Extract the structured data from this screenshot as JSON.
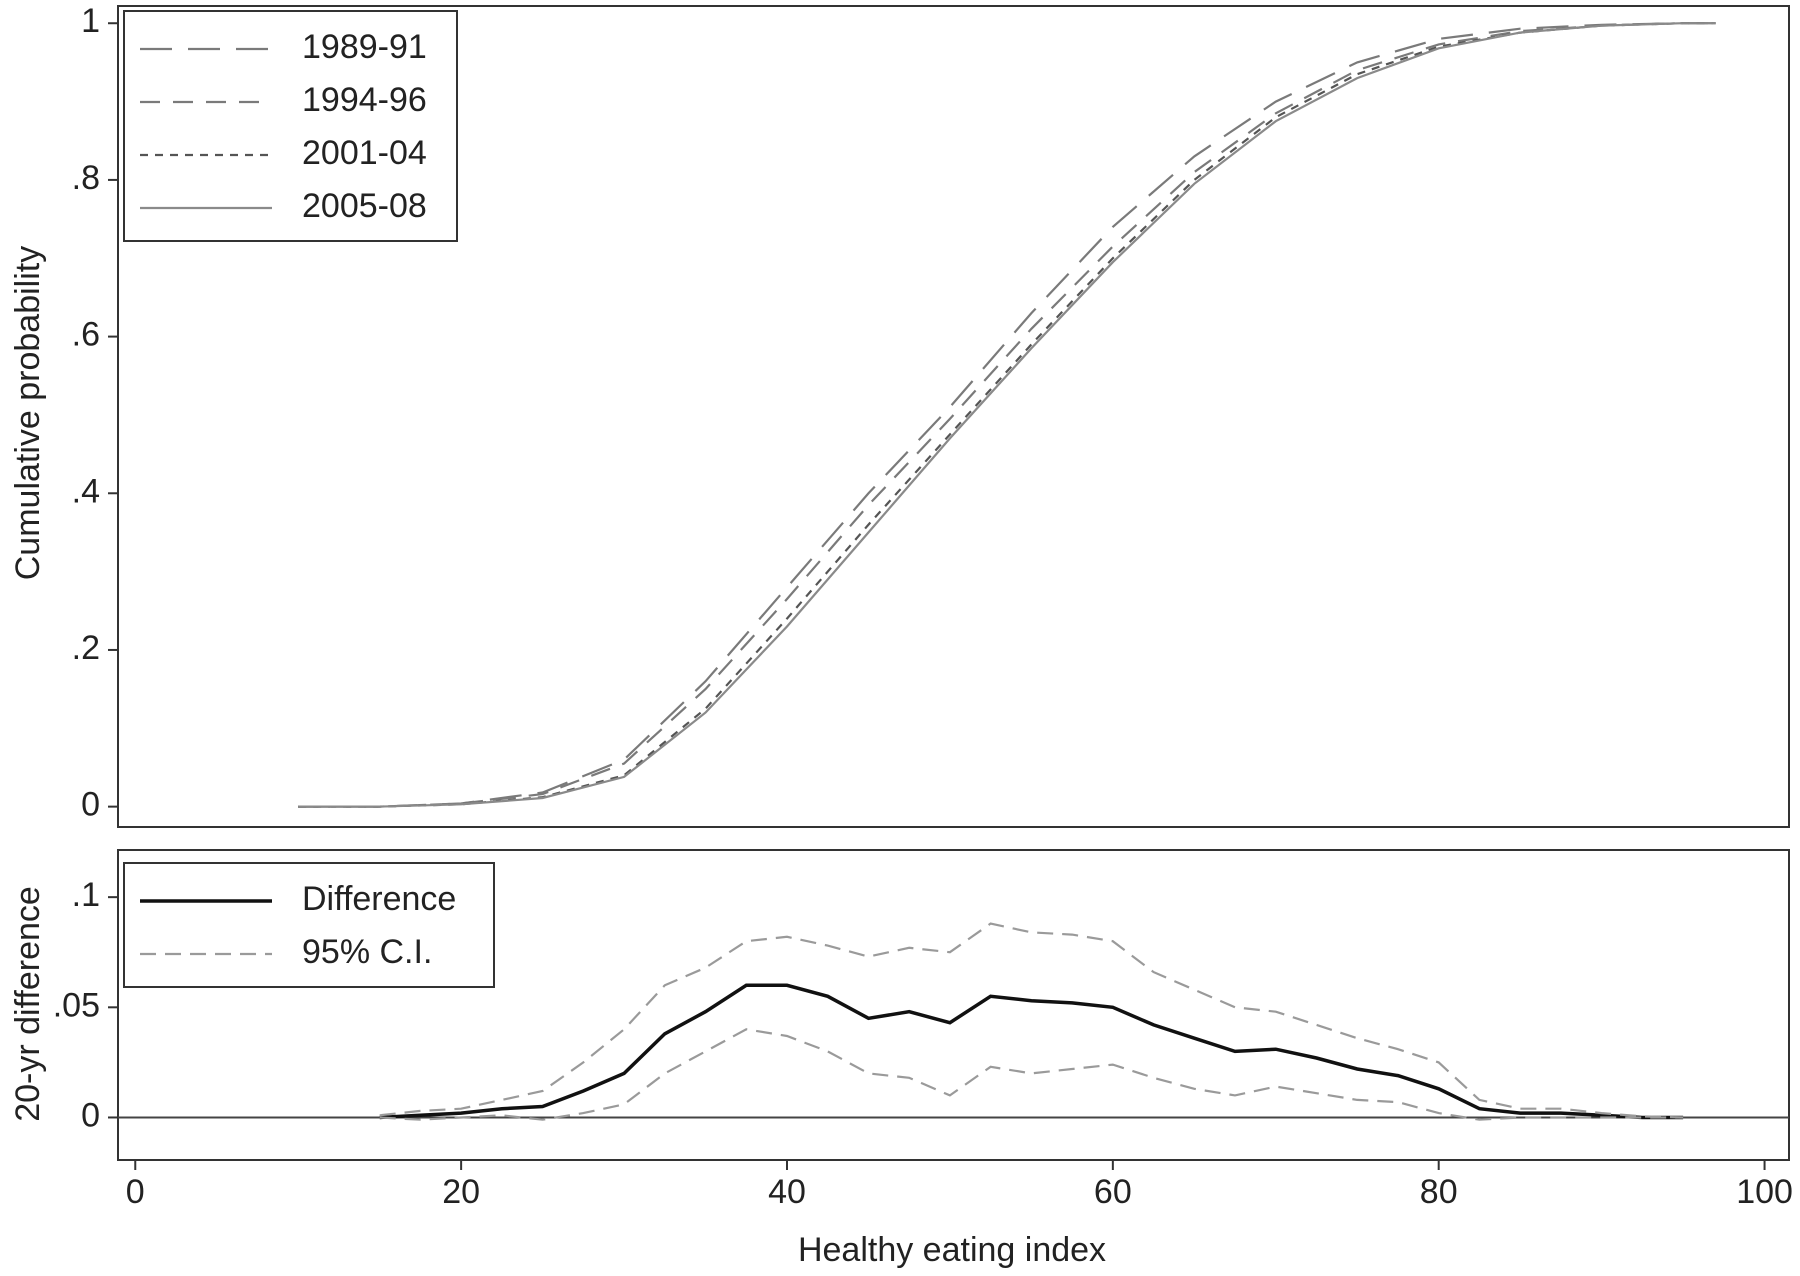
{
  "chart_data": [
    {
      "type": "line",
      "y_label": "Cumulative probability",
      "x": [
        10,
        15,
        20,
        25,
        30,
        35,
        40,
        45,
        50,
        55,
        60,
        65,
        70,
        75,
        80,
        85,
        90,
        95,
        97
      ],
      "series": [
        {
          "name": "1989-91",
          "color": "#7a7a7a",
          "dash": "long",
          "values": [
            0,
            0,
            0.004,
            0.018,
            0.06,
            0.16,
            0.28,
            0.4,
            0.51,
            0.63,
            0.74,
            0.83,
            0.9,
            0.95,
            0.98,
            0.993,
            0.998,
            1,
            1
          ]
        },
        {
          "name": "1994-96",
          "color": "#7a7a7a",
          "dash": "medium",
          "values": [
            0,
            0,
            0.004,
            0.016,
            0.055,
            0.15,
            0.265,
            0.385,
            0.495,
            0.61,
            0.715,
            0.81,
            0.885,
            0.94,
            0.973,
            0.99,
            0.997,
            1,
            1
          ]
        },
        {
          "name": "2001-04",
          "color": "#555555",
          "dash": "short",
          "values": [
            0,
            0,
            0.003,
            0.012,
            0.04,
            0.125,
            0.24,
            0.36,
            0.475,
            0.59,
            0.7,
            0.8,
            0.88,
            0.935,
            0.97,
            0.988,
            0.997,
            1,
            1
          ]
        },
        {
          "name": "2005-08",
          "color": "#8a8a8a",
          "dash": "solid",
          "values": [
            0,
            0,
            0.003,
            0.011,
            0.038,
            0.12,
            0.23,
            0.35,
            0.47,
            0.585,
            0.695,
            0.795,
            0.875,
            0.93,
            0.968,
            0.988,
            0.997,
            1,
            1
          ]
        }
      ],
      "xlim": [
        -1.06,
        101.5
      ],
      "ylim": [
        -0.026,
        1.022
      ],
      "yticks": [
        0,
        {
          "value": 0.2,
          "label": ".2"
        },
        {
          "value": 0.4,
          "label": ".4"
        },
        {
          "value": 0.6,
          "label": ".6"
        },
        {
          "value": 0.8,
          "label": ".8"
        },
        1
      ],
      "legend": "upper left"
    },
    {
      "type": "line",
      "y_label": "20-yr difference",
      "x_label": "Healthy eating index",
      "x": [
        15,
        17.5,
        20,
        22.5,
        25,
        27.5,
        30,
        32.5,
        35,
        37.5,
        40,
        42.5,
        45,
        47.5,
        50,
        52.5,
        55,
        57.5,
        60,
        62.5,
        65,
        67.5,
        70,
        72.5,
        75,
        77.5,
        80,
        82.5,
        85,
        87.5,
        90,
        92.5,
        95
      ],
      "series": [
        {
          "name": "Difference",
          "color": "#111111",
          "dash": "solid",
          "values": [
            0,
            0.001,
            0.002,
            0.004,
            0.005,
            0.012,
            0.02,
            0.038,
            0.048,
            0.06,
            0.06,
            0.055,
            0.045,
            0.048,
            0.043,
            0.055,
            0.053,
            0.052,
            0.05,
            0.042,
            0.036,
            0.03,
            0.031,
            0.027,
            0.022,
            0.019,
            0.013,
            0.004,
            0.002,
            0.002,
            0.001,
            0,
            0
          ]
        },
        {
          "name": "95% C.I.",
          "color": "#9a9a9a",
          "dash": "ci",
          "upper": [
            0.001,
            0.003,
            0.004,
            0.008,
            0.012,
            0.025,
            0.04,
            0.06,
            0.068,
            0.08,
            0.082,
            0.078,
            0.073,
            0.077,
            0.075,
            0.088,
            0.084,
            0.083,
            0.08,
            0.066,
            0.058,
            0.05,
            0.048,
            0.042,
            0.036,
            0.031,
            0.025,
            0.008,
            0.004,
            0.004,
            0.002,
            0.0005,
            0
          ],
          "lower": [
            0,
            -0.001,
            0,
            0.001,
            -0.001,
            0.002,
            0.006,
            0.02,
            0.03,
            0.04,
            0.037,
            0.03,
            0.02,
            0.018,
            0.01,
            0.023,
            0.02,
            0.022,
            0.024,
            0.018,
            0.013,
            0.01,
            0.014,
            0.011,
            0.008,
            0.007,
            0.002,
            -0.001,
            0,
            0,
            0,
            0,
            0
          ]
        }
      ],
      "xlim": [
        -1.06,
        101.5
      ],
      "xticks": [
        0,
        20,
        40,
        60,
        80,
        100
      ],
      "ylim": [
        -0.0193,
        0.1214
      ],
      "yticks": [
        0,
        {
          "value": 0.05,
          "label": ".05"
        },
        {
          "value": 0.1,
          "label": ".1"
        }
      ],
      "zero_line": true,
      "legend": "upper left"
    }
  ]
}
